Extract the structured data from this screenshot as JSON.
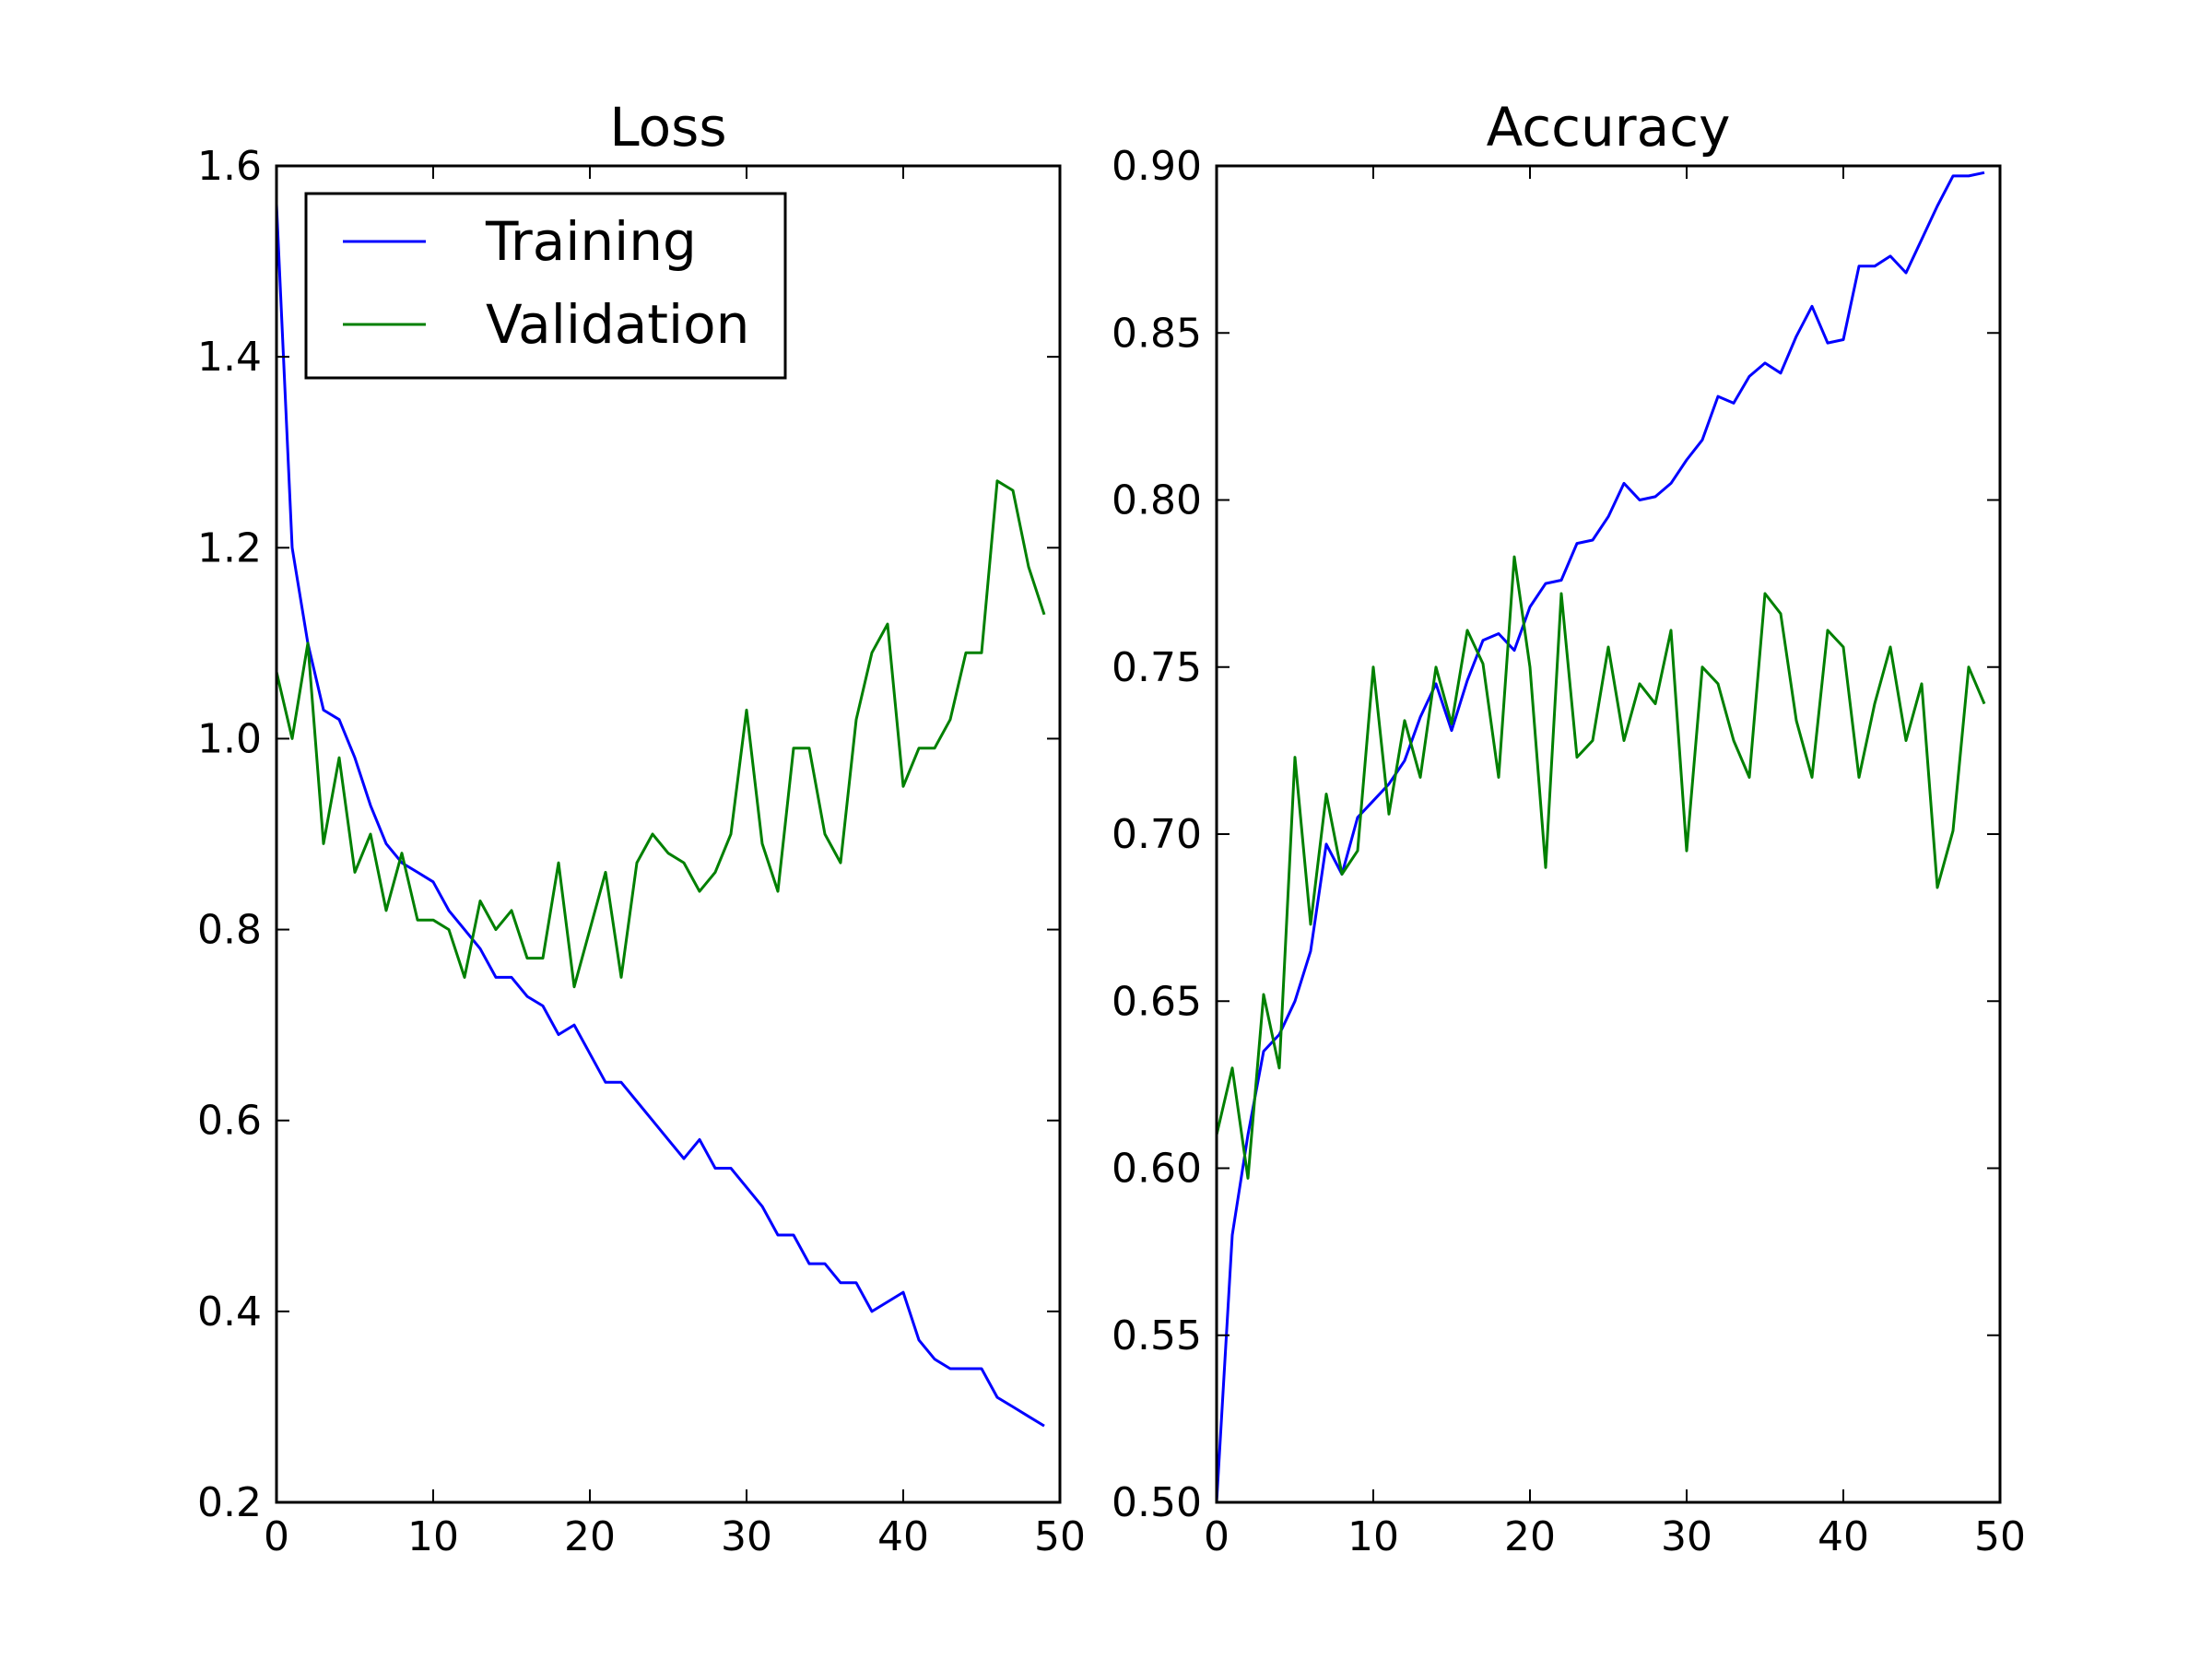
{
  "chart_data": [
    {
      "type": "line",
      "title": "Loss",
      "xlabel": "",
      "ylabel": "",
      "xlim": [
        0,
        50
      ],
      "ylim": [
        0.2,
        1.6
      ],
      "xticks": [
        0,
        10,
        20,
        30,
        40,
        50
      ],
      "yticks": [
        0.2,
        0.4,
        0.6,
        0.8,
        1.0,
        1.2,
        1.4,
        1.6
      ],
      "x_tick_labels": [
        "0",
        "10",
        "20",
        "30",
        "40",
        "50"
      ],
      "y_tick_labels": [
        "0.2",
        "0.4",
        "0.6",
        "0.8",
        "1.0",
        "1.2",
        "1.4",
        "1.6"
      ],
      "grid": false,
      "legend": "top-left",
      "x": [
        0,
        1,
        2,
        3,
        4,
        5,
        6,
        7,
        8,
        9,
        10,
        11,
        12,
        13,
        14,
        15,
        16,
        17,
        18,
        19,
        20,
        21,
        22,
        23,
        24,
        25,
        26,
        27,
        28,
        29,
        30,
        31,
        32,
        33,
        34,
        35,
        36,
        37,
        38,
        39,
        40,
        41,
        42,
        43,
        44,
        45,
        46,
        47,
        48,
        49
      ],
      "series": [
        {
          "name": "Training",
          "color": "#0000ff",
          "values": [
            1.56,
            1.2,
            1.1,
            1.03,
            1.02,
            0.98,
            0.93,
            0.89,
            0.87,
            0.86,
            0.85,
            0.82,
            0.8,
            0.78,
            0.75,
            0.75,
            0.73,
            0.72,
            0.69,
            0.7,
            0.67,
            0.64,
            0.64,
            0.62,
            0.6,
            0.58,
            0.56,
            0.58,
            0.55,
            0.55,
            0.53,
            0.51,
            0.48,
            0.48,
            0.45,
            0.45,
            0.43,
            0.43,
            0.4,
            0.41,
            0.42,
            0.37,
            0.35,
            0.34,
            0.34,
            0.34,
            0.31,
            0.3,
            0.29,
            0.28
          ]
        },
        {
          "name": "Validation",
          "color": "#008000",
          "values": [
            1.07,
            1.0,
            1.1,
            0.89,
            0.98,
            0.86,
            0.9,
            0.82,
            0.88,
            0.81,
            0.81,
            0.8,
            0.75,
            0.83,
            0.8,
            0.82,
            0.77,
            0.77,
            0.87,
            0.74,
            0.8,
            0.86,
            0.75,
            0.87,
            0.9,
            0.88,
            0.87,
            0.84,
            0.86,
            0.9,
            1.03,
            0.89,
            0.84,
            0.99,
            0.99,
            0.9,
            0.87,
            1.02,
            1.09,
            1.12,
            0.95,
            0.99,
            0.99,
            1.02,
            1.09,
            1.09,
            1.27,
            1.26,
            1.18,
            1.13
          ]
        }
      ]
    },
    {
      "type": "line",
      "title": "Accuracy",
      "xlabel": "",
      "ylabel": "",
      "xlim": [
        0,
        50
      ],
      "ylim": [
        0.5,
        0.9
      ],
      "xticks": [
        0,
        10,
        20,
        30,
        40,
        50
      ],
      "yticks": [
        0.5,
        0.55,
        0.6,
        0.65,
        0.7,
        0.75,
        0.8,
        0.85,
        0.9
      ],
      "x_tick_labels": [
        "0",
        "10",
        "20",
        "30",
        "40",
        "50"
      ],
      "y_tick_labels": [
        "0.50",
        "0.55",
        "0.60",
        "0.65",
        "0.70",
        "0.75",
        "0.80",
        "0.85",
        "0.90"
      ],
      "grid": false,
      "x": [
        0,
        1,
        2,
        3,
        4,
        5,
        6,
        7,
        8,
        9,
        10,
        11,
        12,
        13,
        14,
        15,
        16,
        17,
        18,
        19,
        20,
        21,
        22,
        23,
        24,
        25,
        26,
        27,
        28,
        29,
        30,
        31,
        32,
        33,
        34,
        35,
        36,
        37,
        38,
        39,
        40,
        41,
        42,
        43,
        44,
        45,
        46,
        47,
        48,
        49
      ],
      "series": [
        {
          "color": "#0000ff",
          "values": [
            0.5,
            0.58,
            0.61,
            0.635,
            0.64,
            0.65,
            0.665,
            0.697,
            0.688,
            0.705,
            0.71,
            0.715,
            0.722,
            0.735,
            0.745,
            0.731,
            0.746,
            0.758,
            0.76,
            0.755,
            0.768,
            0.775,
            0.776,
            0.787,
            0.788,
            0.795,
            0.805,
            0.8,
            0.801,
            0.805,
            0.812,
            0.818,
            0.831,
            0.829,
            0.837,
            0.841,
            0.838,
            0.849,
            0.858,
            0.847,
            0.848,
            0.87,
            0.87,
            0.873,
            0.868,
            0.878,
            0.888,
            0.897,
            0.897,
            0.898
          ]
        },
        {
          "color": "#008000",
          "values": [
            0.61,
            0.63,
            0.597,
            0.652,
            0.63,
            0.723,
            0.673,
            0.712,
            0.688,
            0.695,
            0.75,
            0.706,
            0.734,
            0.717,
            0.75,
            0.733,
            0.761,
            0.751,
            0.717,
            0.783,
            0.75,
            0.69,
            0.772,
            0.723,
            0.728,
            0.756,
            0.728,
            0.745,
            0.739,
            0.761,
            0.695,
            0.75,
            0.745,
            0.728,
            0.717,
            0.772,
            0.766,
            0.734,
            0.717,
            0.761,
            0.756,
            0.717,
            0.739,
            0.756,
            0.728,
            0.745,
            0.684,
            0.701,
            0.75,
            0.739
          ]
        }
      ]
    }
  ]
}
